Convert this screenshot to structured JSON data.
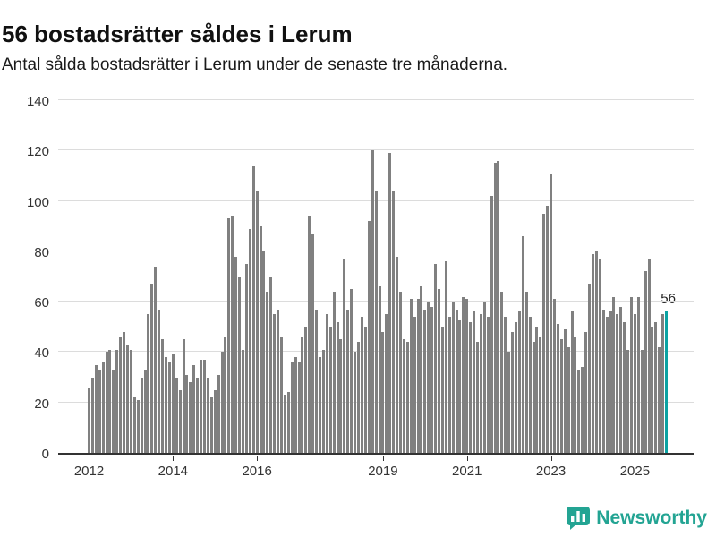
{
  "header": {
    "title": "56 bostadsrätter såldes i Lerum",
    "subtitle": "Antal sålda bostadsrätter i Lerum under de senaste tre månaderna."
  },
  "branding": {
    "logo_text": "Newsworthy",
    "logo_color": "#23a493",
    "logo_icon": "bar-chart-bubble-icon"
  },
  "chart_data": {
    "type": "bar",
    "title": "56 bostadsrätter såldes i Lerum",
    "subtitle": "Antal sålda bostadsrätter i Lerum under de senaste tre månaderna.",
    "frequency": "monthly",
    "x_start": "2012-01",
    "x_end": "2025-10",
    "ylim": [
      0,
      140
    ],
    "yticks": [
      0,
      20,
      40,
      60,
      80,
      100,
      120,
      140
    ],
    "xtick_years": [
      2012,
      2014,
      2016,
      2019,
      2021,
      2023,
      2025
    ],
    "grid": true,
    "bar_color": "#808080",
    "highlight_color": "#0ba3a3",
    "highlight_label": "56",
    "values": [
      26,
      30,
      35,
      33,
      36,
      40,
      41,
      33,
      41,
      46,
      48,
      43,
      41,
      22,
      21,
      30,
      33,
      55,
      67,
      74,
      57,
      45,
      38,
      36,
      39,
      30,
      25,
      45,
      31,
      28,
      35,
      30,
      37,
      37,
      30,
      22,
      25,
      31,
      40,
      46,
      93,
      94,
      78,
      70,
      41,
      75,
      89,
      114,
      104,
      90,
      80,
      64,
      70,
      55,
      57,
      46,
      23,
      24,
      36,
      38,
      36,
      46,
      50,
      94,
      87,
      57,
      38,
      41,
      55,
      50,
      64,
      52,
      45,
      77,
      57,
      65,
      40,
      44,
      54,
      50,
      92,
      120,
      104,
      66,
      48,
      55,
      119,
      104,
      78,
      64,
      45,
      44,
      61,
      54,
      61,
      66,
      57,
      60,
      58,
      75,
      65,
      50,
      76,
      54,
      60,
      57,
      53,
      62,
      61,
      52,
      56,
      44,
      55,
      60,
      54,
      102,
      115,
      116,
      64,
      54,
      40,
      48,
      52,
      56,
      86,
      64,
      54,
      44,
      50,
      46,
      95,
      98,
      111,
      61,
      51,
      45,
      49,
      42,
      56,
      46,
      33,
      34,
      48,
      67,
      79,
      80,
      77,
      57,
      54,
      56,
      62,
      55,
      58,
      52,
      41,
      62,
      55,
      62,
      41,
      72,
      77,
      50,
      52,
      42,
      55,
      56
    ]
  }
}
